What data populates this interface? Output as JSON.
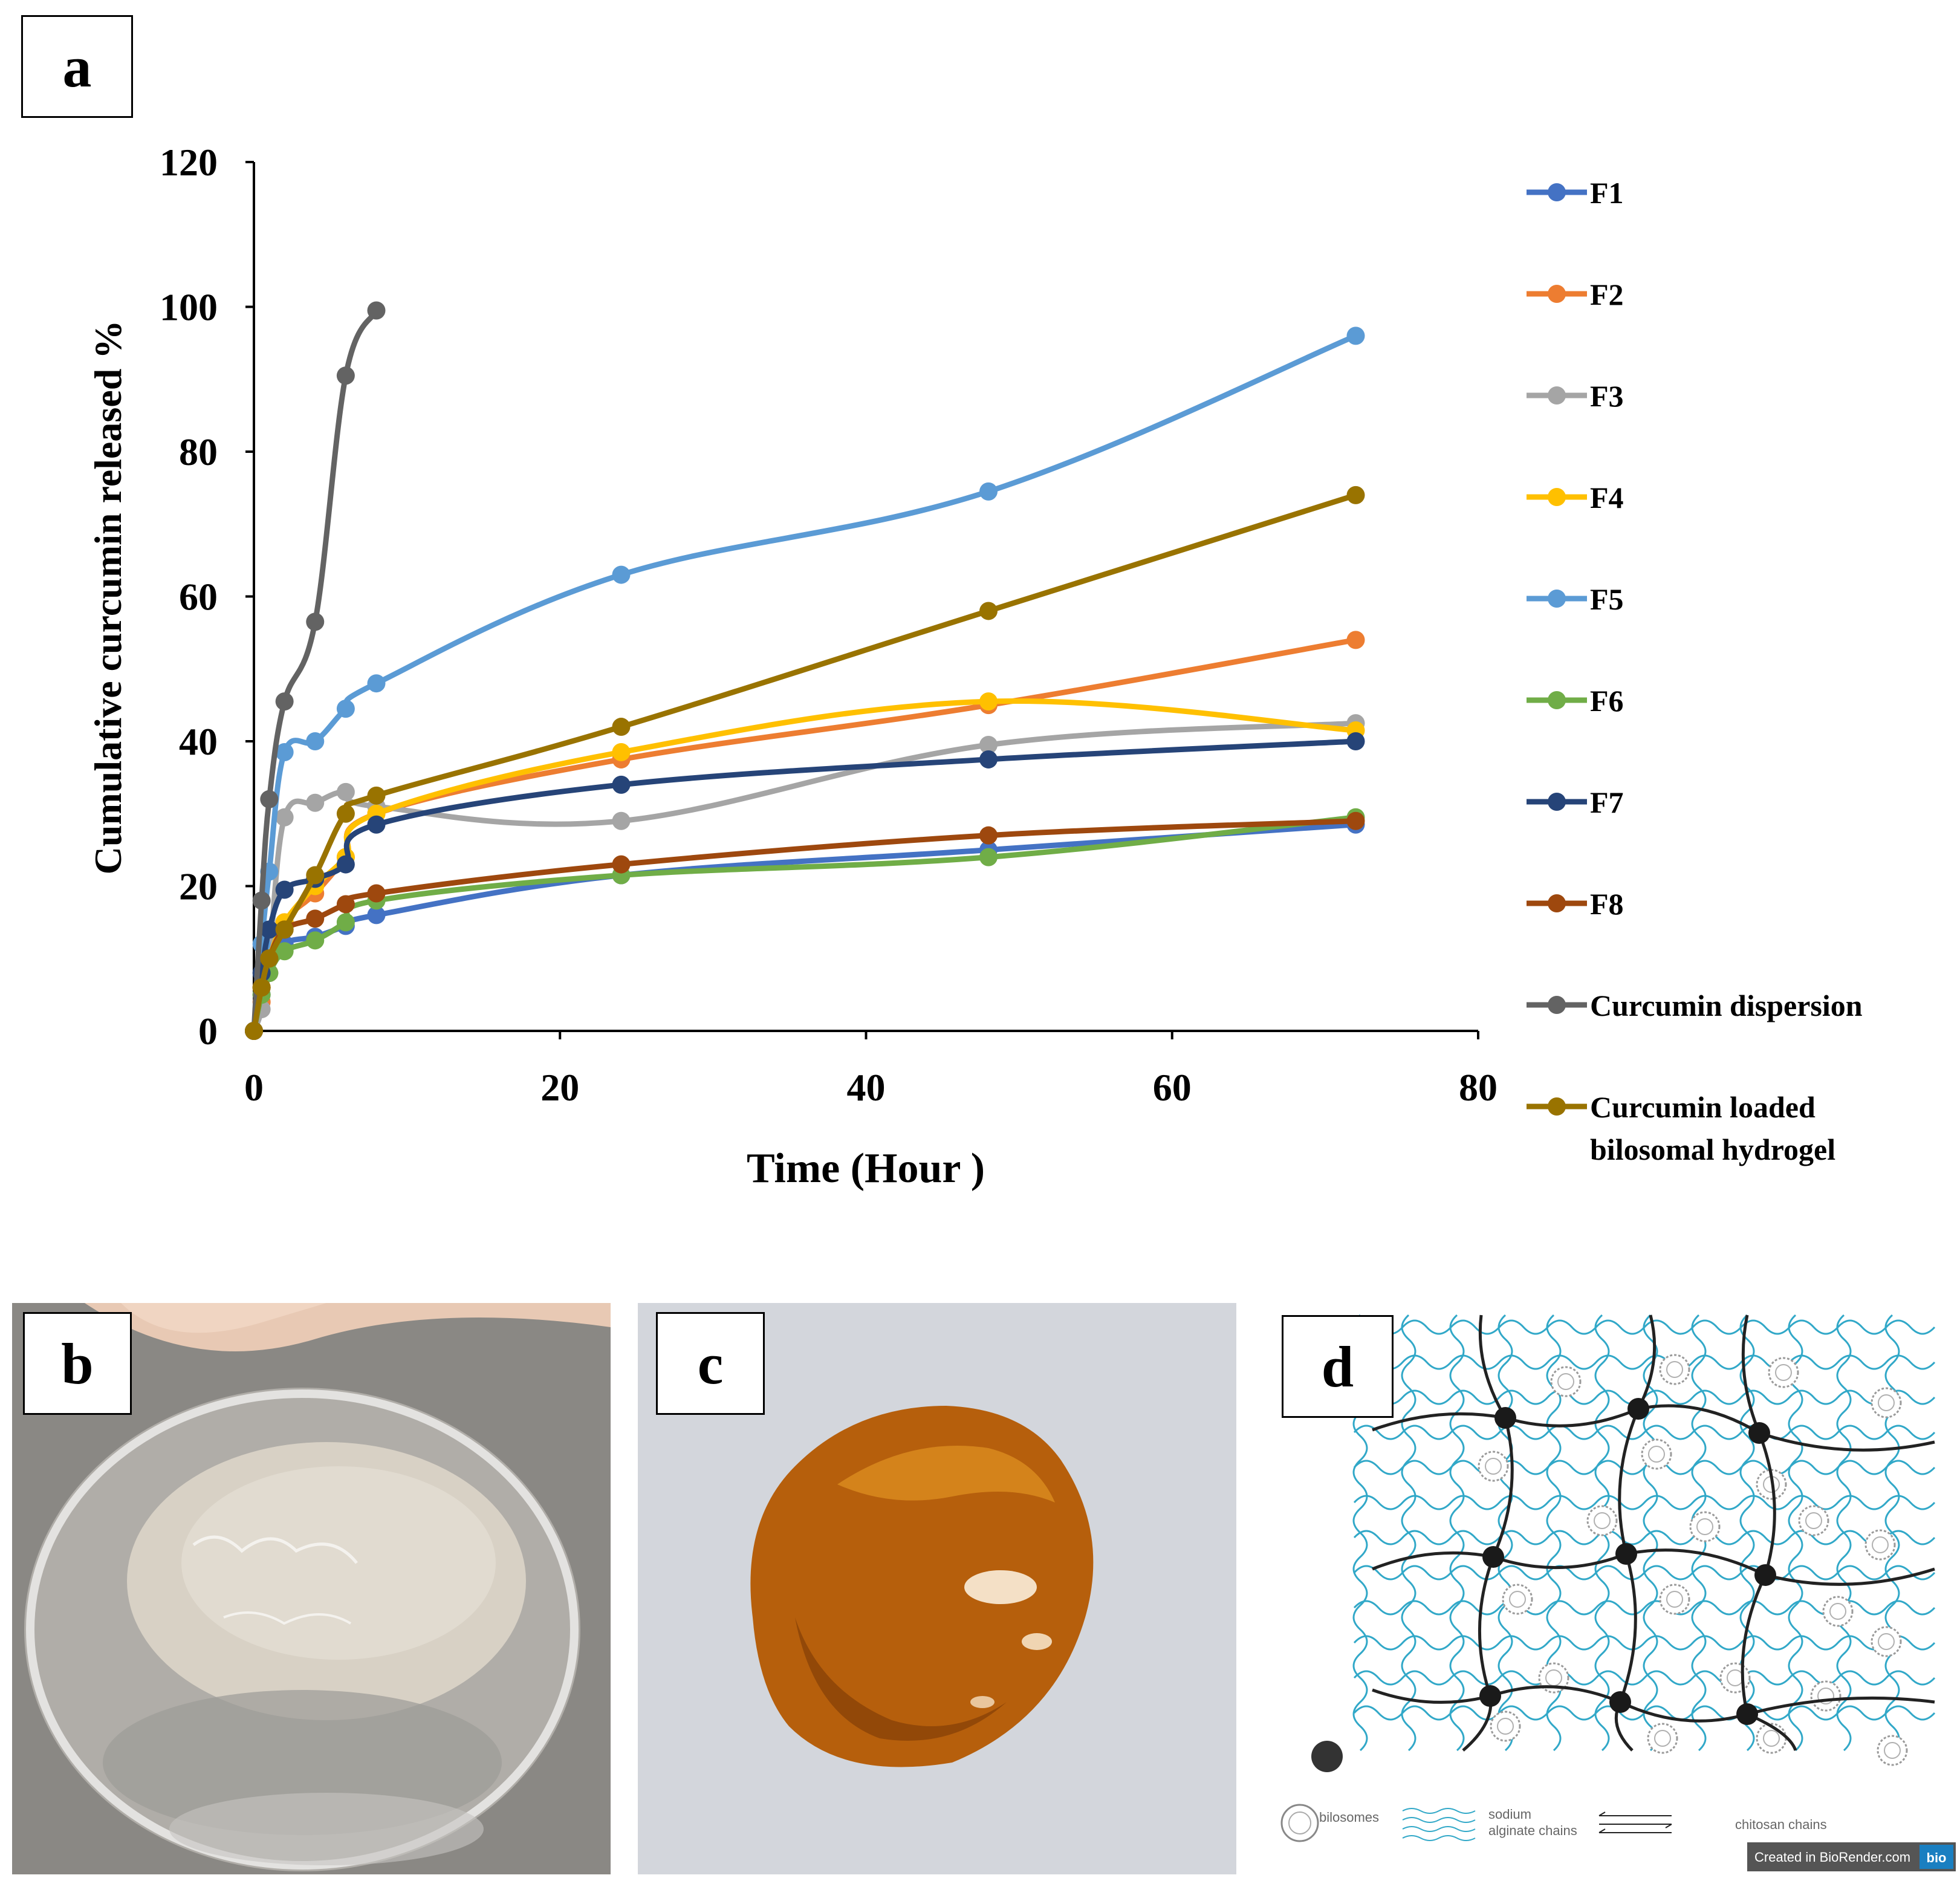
{
  "panels": {
    "a": "a",
    "b": "b",
    "c": "c",
    "d": "d"
  },
  "chart_data": {
    "type": "line",
    "title": "",
    "xlabel": "Time (Hour )",
    "ylabel": "Cumulative curcumin released %",
    "xlim": [
      0,
      80
    ],
    "ylim": [
      0,
      120
    ],
    "xticks": [
      0,
      20,
      40,
      60,
      80
    ],
    "yticks": [
      0,
      20,
      40,
      60,
      80,
      100,
      120
    ],
    "grid": false,
    "legend_position": "right",
    "series": [
      {
        "name": "F1",
        "color": "#4472c4",
        "x": [
          0,
          0.5,
          1,
          2,
          4,
          6,
          8,
          24,
          48,
          72
        ],
        "y": [
          0,
          5,
          8,
          12,
          13,
          14.5,
          16,
          21.5,
          25,
          28.5
        ]
      },
      {
        "name": "F2",
        "color": "#ed7d31",
        "x": [
          0,
          0.5,
          1,
          2,
          4,
          6,
          8,
          24,
          48,
          72
        ],
        "y": [
          0,
          4,
          8,
          15,
          19,
          24,
          30,
          37.5,
          45,
          54
        ]
      },
      {
        "name": "F3",
        "color": "#a5a5a5",
        "x": [
          0,
          0.5,
          1,
          2,
          4,
          6,
          8,
          24,
          48,
          72
        ],
        "y": [
          0,
          3,
          10,
          29.5,
          31.5,
          33,
          31,
          29,
          39.5,
          42.5
        ]
      },
      {
        "name": "F4",
        "color": "#ffc000",
        "x": [
          0,
          0.5,
          1,
          2,
          4,
          6,
          8,
          24,
          48,
          72
        ],
        "y": [
          0,
          6,
          10,
          15,
          20,
          24,
          30,
          38.5,
          45.5,
          41.5
        ]
      },
      {
        "name": "F5",
        "color": "#5b9bd5",
        "x": [
          0,
          0.5,
          1,
          2,
          4,
          6,
          8,
          24,
          48,
          72
        ],
        "y": [
          0,
          12,
          22,
          38.5,
          40,
          44.5,
          48,
          63,
          74.5,
          96
        ]
      },
      {
        "name": "F6",
        "color": "#70ad47",
        "x": [
          0,
          0.5,
          1,
          2,
          4,
          6,
          8,
          24,
          48,
          72
        ],
        "y": [
          0,
          5,
          8,
          11,
          12.5,
          15,
          18,
          21.5,
          24,
          29.5
        ]
      },
      {
        "name": "F7",
        "color": "#264478",
        "x": [
          0,
          0.5,
          1,
          2,
          4,
          6,
          8,
          24,
          48,
          72
        ],
        "y": [
          0,
          8,
          14,
          19.5,
          21,
          23,
          28.5,
          34,
          37.5,
          40
        ]
      },
      {
        "name": "F8",
        "color": "#9e480e",
        "x": [
          0,
          0.5,
          1,
          2,
          4,
          6,
          8,
          24,
          48,
          72
        ],
        "y": [
          0,
          6,
          10,
          14,
          15.5,
          17.5,
          19,
          23,
          27,
          29
        ]
      },
      {
        "name": "Curcumin dispersion",
        "color": "#636363",
        "x": [
          0,
          0.5,
          1,
          2,
          4,
          6,
          8
        ],
        "y": [
          0,
          18,
          32,
          45.5,
          56.5,
          90.5,
          99.5
        ]
      },
      {
        "name": "Curcumin loaded bilosomal hydrogel",
        "color": "#997300",
        "x": [
          0,
          0.5,
          1,
          2,
          4,
          6,
          8,
          24,
          48,
          72
        ],
        "y": [
          0,
          6,
          10,
          14,
          21.5,
          30,
          32.5,
          42,
          58,
          74
        ]
      }
    ]
  },
  "legend": {
    "entries": [
      "F1",
      "F2",
      "F3",
      "F4",
      "F5",
      "F6",
      "F7",
      "F8",
      "Curcumin dispersion",
      "Curcumin loaded bilosomal hydrogel"
    ],
    "last_line1": "Curcumin loaded",
    "last_line2": "bilosomal hydrogel"
  },
  "diagram": {
    "legend_bilosomes": "bilosomes",
    "legend_sodium_line1": "sodium",
    "legend_sodium_line2": "alginate chains",
    "legend_chitosan": "chitosan chains",
    "credit": "Created in BioRender.com",
    "credit_logo": "bio"
  },
  "colors": {
    "diagram_blue": "#31a8c8",
    "diagram_black": "#222222",
    "gel_orange": "#c06a10"
  }
}
